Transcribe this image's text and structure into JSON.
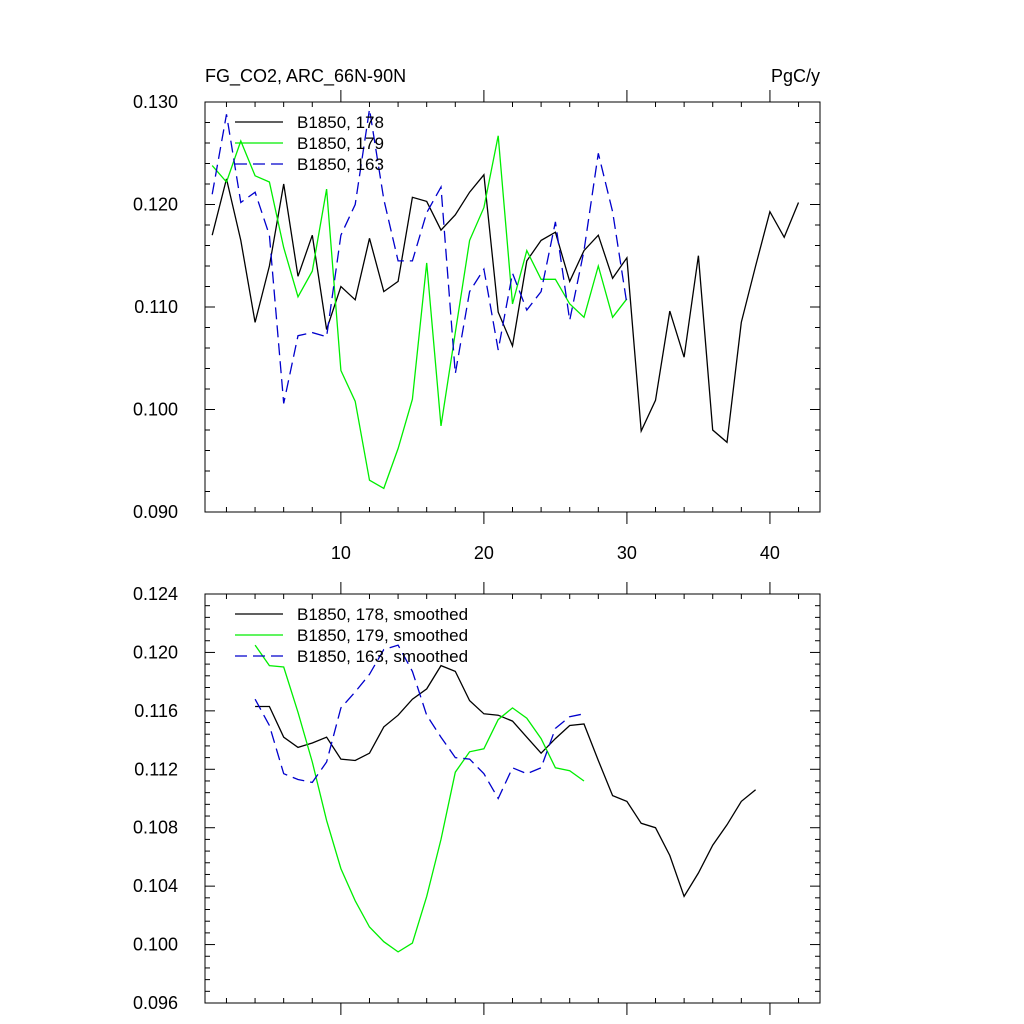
{
  "colors": {
    "178": "#000000",
    "179": "#00ee00",
    "163": "#0000cc"
  },
  "chart_data": [
    {
      "type": "line",
      "title": "FG_CO2, ARC_66N-90N",
      "units": "PgC/y",
      "xlim": [
        0.5,
        43.5
      ],
      "ylim": [
        0.09,
        0.13
      ],
      "x_ticks": [
        10,
        20,
        30,
        40
      ],
      "x_tick_labels": [
        "10",
        "20",
        "30",
        "40"
      ],
      "y_ticks": [
        0.09,
        0.1,
        0.11,
        0.12,
        0.13
      ],
      "y_tick_labels": [
        "0.090",
        "0.100",
        "0.110",
        "0.120",
        "0.130"
      ],
      "x_label_side": "bottom",
      "legend_position": "top-left",
      "series": [
        {
          "name": "B1850, 178",
          "color_key": "178",
          "dash": "solid",
          "x": [
            1,
            2,
            3,
            4,
            5,
            6,
            7,
            8,
            9,
            10,
            11,
            12,
            13,
            14,
            15,
            16,
            17,
            18,
            19,
            20,
            21,
            22,
            23,
            24,
            25,
            26,
            27,
            28,
            29,
            30,
            31,
            32,
            33,
            34,
            35,
            36,
            37,
            38,
            39,
            40,
            41,
            42
          ],
          "values": [
            0.117,
            0.1225,
            0.1165,
            0.1085,
            0.114,
            0.122,
            0.113,
            0.117,
            0.1078,
            0.112,
            0.1107,
            0.1167,
            0.1115,
            0.1125,
            0.1207,
            0.1203,
            0.1175,
            0.119,
            0.1212,
            0.1229,
            0.1095,
            0.1062,
            0.1145,
            0.1165,
            0.1173,
            0.1125,
            0.1155,
            0.117,
            0.1128,
            0.1148,
            0.0979,
            0.1009,
            0.1096,
            0.1051,
            0.115,
            0.098,
            0.0968,
            0.1085,
            0.114,
            0.1193,
            0.1168,
            0.1202
          ]
        },
        {
          "name": "B1850, 179",
          "color_key": "179",
          "dash": "solid",
          "x": [
            1,
            2,
            3,
            4,
            5,
            6,
            7,
            8,
            9,
            10,
            11,
            12,
            13,
            14,
            15,
            16,
            17,
            18,
            19,
            20,
            21,
            22,
            23,
            24,
            25,
            26,
            27,
            28,
            29,
            30
          ],
          "values": [
            0.1238,
            0.1222,
            0.1262,
            0.1228,
            0.1222,
            0.1158,
            0.111,
            0.1135,
            0.1215,
            0.1038,
            0.1008,
            0.0931,
            0.0923,
            0.0962,
            0.101,
            0.1143,
            0.0984,
            0.1075,
            0.1165,
            0.1197,
            0.1267,
            0.1103,
            0.1155,
            0.1127,
            0.1127,
            0.1103,
            0.109,
            0.114,
            0.109,
            0.1108
          ]
        },
        {
          "name": "B1850, 163",
          "color_key": "163",
          "dash": "dashed",
          "x": [
            1,
            2,
            3,
            4,
            5,
            6,
            7,
            8,
            9,
            10,
            11,
            12,
            13,
            14,
            15,
            16,
            17,
            18,
            19,
            20,
            21,
            22,
            23,
            24,
            25,
            26,
            27,
            28,
            29,
            30
          ],
          "values": [
            0.121,
            0.1288,
            0.1202,
            0.1212,
            0.117,
            0.1006,
            0.1072,
            0.1075,
            0.1071,
            0.117,
            0.12,
            0.1293,
            0.1205,
            0.1145,
            0.1145,
            0.1192,
            0.1217,
            0.1035,
            0.1115,
            0.1137,
            0.1058,
            0.1133,
            0.1097,
            0.1115,
            0.1183,
            0.1087,
            0.1155,
            0.125,
            0.1193,
            0.1103
          ]
        }
      ]
    },
    {
      "type": "line",
      "title": "",
      "units": "",
      "xlim": [
        0.5,
        43.5
      ],
      "ylim": [
        0.096,
        0.124
      ],
      "x_ticks": [
        10,
        20,
        30,
        40
      ],
      "x_tick_labels": [],
      "y_ticks": [
        0.096,
        0.1,
        0.104,
        0.108,
        0.112,
        0.116,
        0.12,
        0.124
      ],
      "y_tick_labels": [
        "0.096",
        "0.100",
        "0.104",
        "0.108",
        "0.112",
        "0.116",
        "0.120",
        "0.124"
      ],
      "legend_position": "top-left",
      "series": [
        {
          "name": "B1850, 178, smoothed",
          "color_key": "178",
          "dash": "solid",
          "x": [
            4,
            5,
            6,
            7,
            8,
            9,
            10,
            11,
            12,
            13,
            14,
            15,
            16,
            17,
            18,
            19,
            20,
            21,
            22,
            23,
            24,
            25,
            26,
            27,
            28,
            29,
            30,
            31,
            32,
            33,
            34,
            35,
            36,
            37,
            38,
            39
          ],
          "values": [
            0.1163,
            0.1163,
            0.1142,
            0.1135,
            0.1138,
            0.1142,
            0.1127,
            0.1126,
            0.1131,
            0.1149,
            0.1157,
            0.1168,
            0.1175,
            0.1191,
            0.1187,
            0.1167,
            0.1158,
            0.1157,
            0.1153,
            0.1142,
            0.1131,
            0.1141,
            0.115,
            0.1151,
            0.1126,
            0.1102,
            0.1098,
            0.1083,
            0.108,
            0.1061,
            0.1033,
            0.1049,
            0.1068,
            0.1082,
            0.1098,
            0.1106
          ]
        },
        {
          "name": "B1850, 179, smoothed",
          "color_key": "179",
          "dash": "solid",
          "x": [
            4,
            5,
            6,
            7,
            8,
            9,
            10,
            11,
            12,
            13,
            14,
            15,
            16,
            17,
            18,
            19,
            20,
            21,
            22,
            23,
            24,
            25,
            26,
            27
          ],
          "values": [
            0.1205,
            0.1191,
            0.119,
            0.1159,
            0.1125,
            0.1085,
            0.1052,
            0.103,
            0.1012,
            0.1002,
            0.0995,
            0.1001,
            0.1033,
            0.1072,
            0.1118,
            0.1132,
            0.1134,
            0.1154,
            0.1162,
            0.1155,
            0.1141,
            0.1121,
            0.1119,
            0.1112
          ]
        },
        {
          "name": "B1850, 163, smoothed",
          "color_key": "163",
          "dash": "dashed",
          "x": [
            4,
            5,
            6,
            7,
            8,
            9,
            10,
            11,
            12,
            13,
            14,
            15,
            16,
            17,
            18,
            19,
            20,
            21,
            22,
            23,
            24,
            25,
            26,
            27
          ],
          "values": [
            0.1168,
            0.115,
            0.1117,
            0.1113,
            0.1111,
            0.1125,
            0.1162,
            0.1173,
            0.1185,
            0.1202,
            0.1205,
            0.1187,
            0.1157,
            0.1142,
            0.1128,
            0.1127,
            0.1117,
            0.11,
            0.1121,
            0.1117,
            0.1121,
            0.1148,
            0.1156,
            0.1158
          ]
        }
      ]
    }
  ]
}
